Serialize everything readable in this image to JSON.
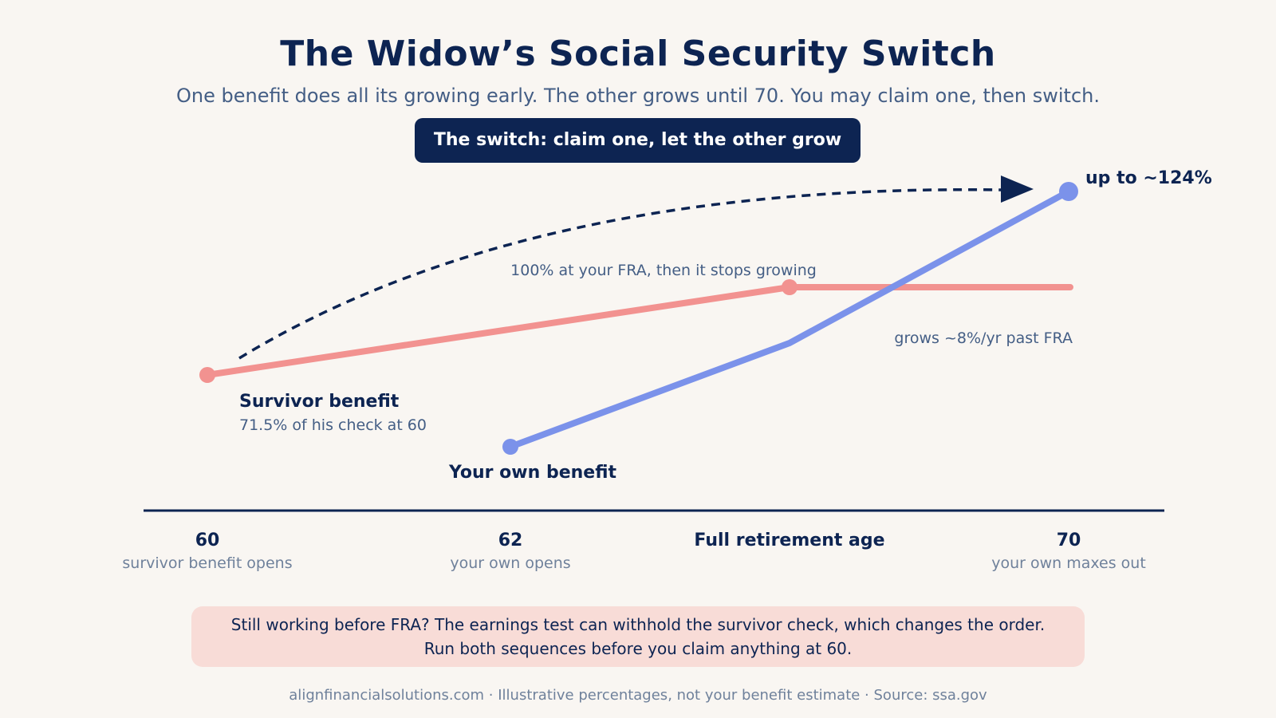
{
  "title": "The Widow’s Social Security Switch",
  "subtitle": "One benefit does all its growing early. The other grows until 70. You may claim one, then switch.",
  "pill_label": "The switch: claim one, let the other grow",
  "colors": {
    "survivor": "#f29290",
    "own": "#7b92ea",
    "navy": "#0d2452",
    "muted": "#445e85",
    "note_bg": "#f8dcd7"
  },
  "axis": {
    "ticks": [
      {
        "label": "60",
        "sub": "survivor benefit opens"
      },
      {
        "label": "62",
        "sub": "your own opens"
      },
      {
        "label": "Full retirement age",
        "sub": ""
      },
      {
        "label": "70",
        "sub": "your own maxes out"
      }
    ]
  },
  "survivor": {
    "name": "Survivor benefit",
    "detail": "71.5% of his check at 60",
    "fra_note": "100% at your FRA, then it stops growing",
    "start_pct": 71.5,
    "fra_pct": 100
  },
  "own": {
    "name": "Your own benefit",
    "growth_note": "grows ~8%/yr past FRA",
    "end_label": "up to ~124%",
    "end_pct": 124
  },
  "note": {
    "line1": "Still working before FRA? The earnings test can withhold the survivor check, which changes the order.",
    "line2": "Run both sequences before you claim anything at 60."
  },
  "footer": "alignfinancialsolutions.com · Illustrative percentages, not your benefit estimate · Source: ssa.gov"
}
